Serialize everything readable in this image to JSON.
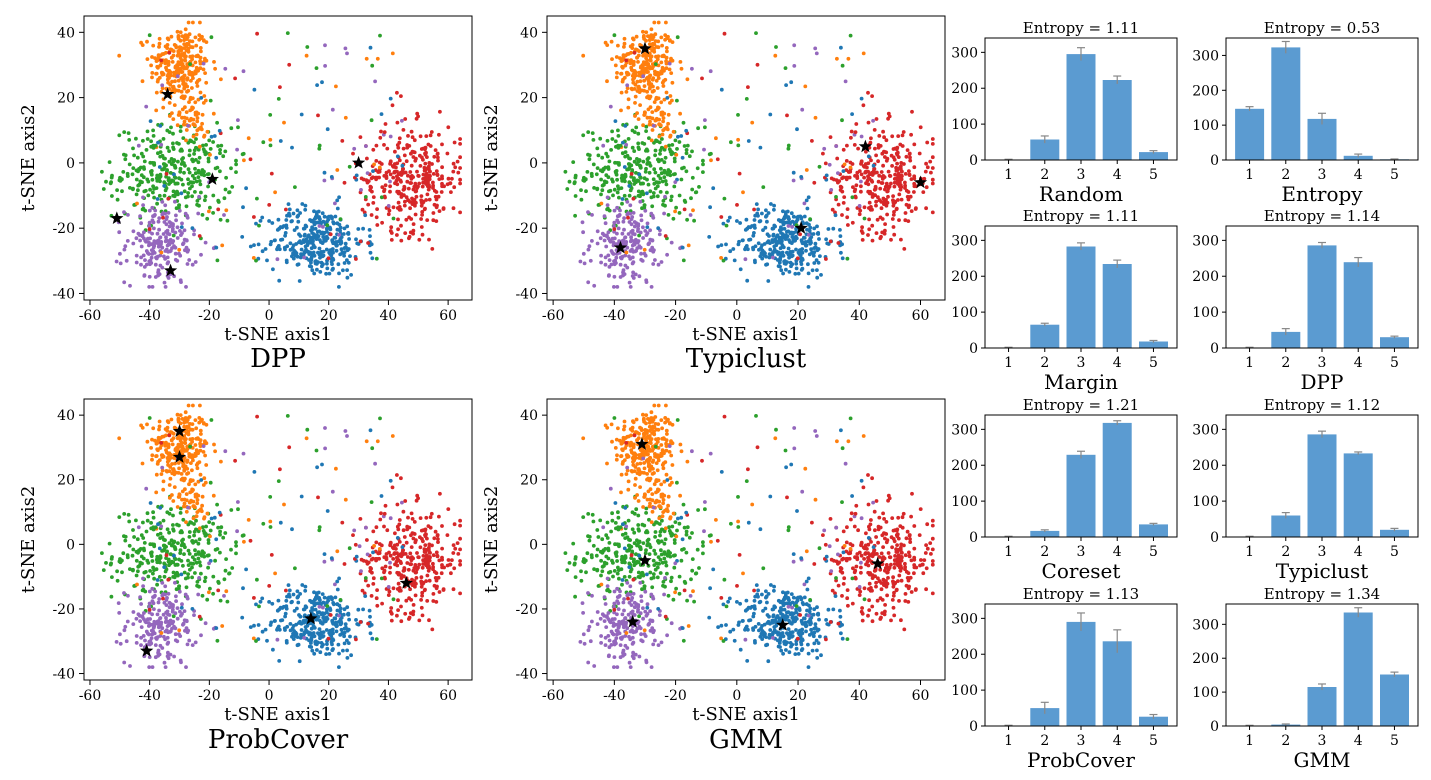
{
  "chart_data": [
    {
      "id": "tsne-dpp",
      "type": "scatter",
      "caption": "DPP",
      "xlabel": "t-SNE axis1",
      "ylabel": "t-SNE axis2",
      "xlim": [
        -62,
        68
      ],
      "ylim": [
        -42,
        45
      ],
      "xticks": [
        -60,
        -40,
        -20,
        0,
        20,
        40,
        60
      ],
      "yticks": [
        -40,
        -20,
        0,
        20,
        40
      ],
      "stars": [
        [
          -34,
          21
        ],
        [
          -19,
          -5
        ],
        [
          30,
          0
        ],
        [
          -51,
          -17
        ],
        [
          -33,
          -33
        ]
      ]
    },
    {
      "id": "tsne-typiclust",
      "type": "scatter",
      "caption": "Typiclust",
      "xlabel": "t-SNE axis1",
      "ylabel": "t-SNE axis2",
      "xlim": [
        -62,
        68
      ],
      "ylim": [
        -42,
        45
      ],
      "xticks": [
        -60,
        -40,
        -20,
        0,
        20,
        40,
        60
      ],
      "yticks": [
        -40,
        -20,
        0,
        20,
        40
      ],
      "stars": [
        [
          -30,
          35
        ],
        [
          42,
          5
        ],
        [
          60,
          -6
        ],
        [
          21,
          -20
        ],
        [
          -38,
          -26
        ]
      ]
    },
    {
      "id": "tsne-probcover",
      "type": "scatter",
      "caption": "ProbCover",
      "xlabel": "t-SNE axis1",
      "ylabel": "t-SNE axis2",
      "xlim": [
        -62,
        68
      ],
      "ylim": [
        -42,
        45
      ],
      "xticks": [
        -60,
        -40,
        -20,
        0,
        20,
        40,
        60
      ],
      "yticks": [
        -40,
        -20,
        0,
        20,
        40
      ],
      "stars": [
        [
          -30,
          35
        ],
        [
          -30,
          27
        ],
        [
          46,
          -12
        ],
        [
          14,
          -23
        ],
        [
          -41,
          -33
        ]
      ]
    },
    {
      "id": "tsne-gmm",
      "type": "scatter",
      "caption": "GMM",
      "xlabel": "t-SNE axis1",
      "ylabel": "t-SNE axis2",
      "xlim": [
        -62,
        68
      ],
      "ylim": [
        -42,
        45
      ],
      "xticks": [
        -60,
        -40,
        -20,
        0,
        20,
        40,
        60
      ],
      "yticks": [
        -40,
        -20,
        0,
        20,
        40
      ],
      "stars": [
        [
          -31,
          31
        ],
        [
          -30,
          -5
        ],
        [
          46,
          -6
        ],
        [
          15,
          -25
        ],
        [
          -34,
          -24
        ]
      ]
    },
    {
      "id": "bar-random",
      "type": "bar",
      "title": "Entropy = 1.11",
      "caption": "Random",
      "categories": [
        "1",
        "2",
        "3",
        "4",
        "5"
      ],
      "values": [
        1,
        57,
        295,
        223,
        22
      ],
      "errors": [
        1,
        10,
        18,
        11,
        4
      ],
      "ylim": [
        0,
        340
      ],
      "yticks": [
        0,
        100,
        200,
        300
      ]
    },
    {
      "id": "bar-entropy",
      "type": "bar",
      "title": "Entropy = 0.53",
      "caption": "Entropy",
      "categories": [
        "1",
        "2",
        "3",
        "4",
        "5"
      ],
      "values": [
        147,
        323,
        118,
        12,
        2
      ],
      "errors": [
        6,
        17,
        16,
        5,
        1
      ],
      "ylim": [
        0,
        350
      ],
      "yticks": [
        0,
        100,
        200,
        300
      ]
    },
    {
      "id": "bar-margin",
      "type": "bar",
      "title": "Entropy = 1.11",
      "caption": "Margin",
      "categories": [
        "1",
        "2",
        "3",
        "4",
        "5"
      ],
      "values": [
        1,
        65,
        283,
        234,
        18
      ],
      "errors": [
        1,
        4,
        10,
        11,
        3
      ],
      "ylim": [
        0,
        340
      ],
      "yticks": [
        0,
        100,
        200,
        300
      ]
    },
    {
      "id": "bar-dpp",
      "type": "bar",
      "title": "Entropy = 1.14",
      "caption": "DPP",
      "categories": [
        "1",
        "2",
        "3",
        "4",
        "5"
      ],
      "values": [
        1,
        45,
        286,
        239,
        30
      ],
      "errors": [
        1,
        9,
        8,
        13,
        3
      ],
      "ylim": [
        0,
        340
      ],
      "yticks": [
        0,
        100,
        200,
        300
      ]
    },
    {
      "id": "bar-coreset",
      "type": "bar",
      "title": "Entropy = 1.21",
      "caption": "Coreset",
      "categories": [
        "1",
        "2",
        "3",
        "4",
        "5"
      ],
      "values": [
        1,
        17,
        229,
        318,
        35
      ],
      "errors": [
        1,
        3,
        10,
        6,
        3
      ],
      "ylim": [
        0,
        340
      ],
      "yticks": [
        0,
        100,
        200,
        300
      ]
    },
    {
      "id": "bar-typiclust",
      "type": "bar",
      "title": "Entropy = 1.12",
      "caption": "Typiclust",
      "categories": [
        "1",
        "2",
        "3",
        "4",
        "5"
      ],
      "values": [
        1,
        60,
        286,
        233,
        20
      ],
      "errors": [
        1,
        8,
        9,
        4,
        4
      ],
      "ylim": [
        0,
        340
      ],
      "yticks": [
        0,
        100,
        200,
        300
      ]
    },
    {
      "id": "bar-probcover",
      "type": "bar",
      "title": "Entropy = 1.13",
      "caption": "ProbCover",
      "categories": [
        "1",
        "2",
        "3",
        "4",
        "5"
      ],
      "values": [
        1,
        50,
        290,
        236,
        26
      ],
      "errors": [
        1,
        16,
        25,
        32,
        6
      ],
      "ylim": [
        0,
        340
      ],
      "yticks": [
        0,
        100,
        200,
        300
      ]
    },
    {
      "id": "bar-gmm",
      "type": "bar",
      "title": "Entropy = 1.34",
      "caption": "GMM",
      "categories": [
        "1",
        "2",
        "3",
        "4",
        "5"
      ],
      "values": [
        1,
        4,
        115,
        335,
        152
      ],
      "errors": [
        1,
        2,
        9,
        14,
        7
      ],
      "ylim": [
        0,
        360
      ],
      "yticks": [
        0,
        100,
        200,
        300
      ]
    }
  ],
  "colors": {
    "blue": "#1f77b4",
    "orange": "#ff7f0e",
    "green": "#2ca02c",
    "red": "#d62728",
    "purple": "#9467bd",
    "bar": "#5b9bd1",
    "errorbar": "#888888"
  }
}
